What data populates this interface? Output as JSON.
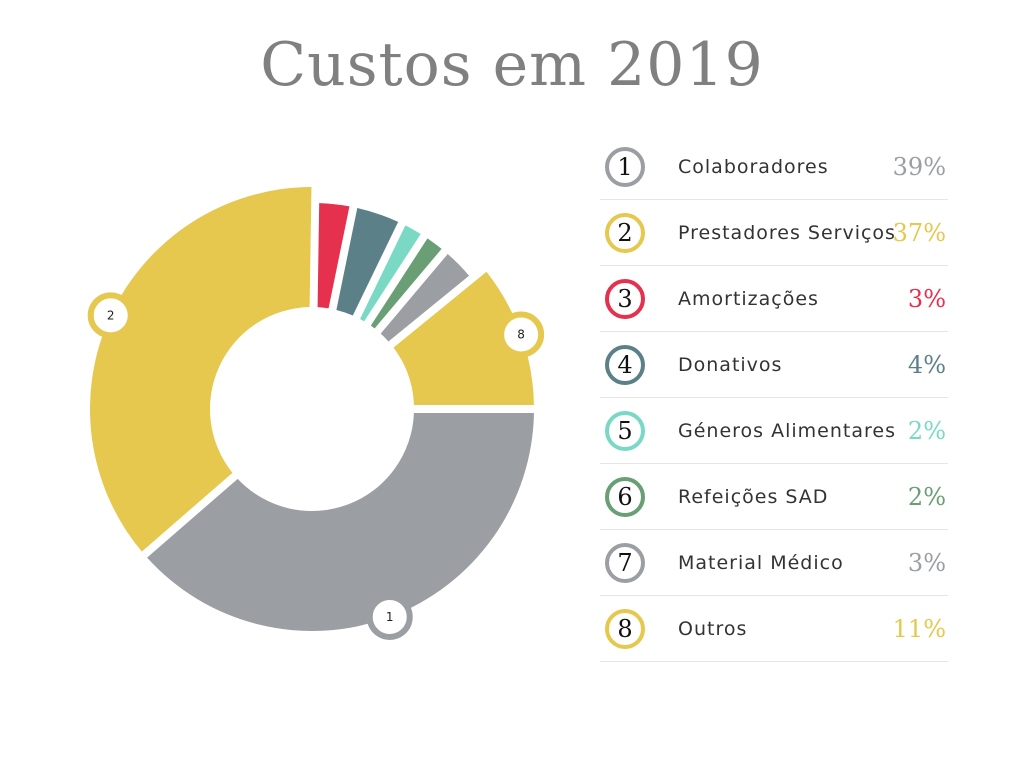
{
  "chart_data": {
    "type": "pie",
    "title": "Custos em 2019",
    "slices": [
      {
        "num": "1",
        "label": "Colaboradores",
        "value": 39,
        "value_label": "39%",
        "color": "#9b9fa3"
      },
      {
        "num": "2",
        "label": "Prestadores Serviços",
        "value": 37,
        "value_label": "37%",
        "color": "#e5c84d"
      },
      {
        "num": "3",
        "label": "Amortizações",
        "value": 3,
        "value_label": "3%",
        "color": "#e5304e"
      },
      {
        "num": "4",
        "label": "Donativos",
        "value": 4,
        "value_label": "4%",
        "color": "#5c8088"
      },
      {
        "num": "5",
        "label": "Géneros Alimentares",
        "value": 2,
        "value_label": "2%",
        "color": "#7ad9c4"
      },
      {
        "num": "6",
        "label": "Refeições SAD",
        "value": 2,
        "value_label": "2%",
        "color": "#6a9e74"
      },
      {
        "num": "7",
        "label": "Material Médico",
        "value": 3,
        "value_label": "3%",
        "color": "#9b9fa3"
      },
      {
        "num": "8",
        "label": "Outros",
        "value": 11,
        "value_label": "11%",
        "color": "#e5c84d"
      }
    ],
    "slice_markers": [
      "1",
      "2",
      "8"
    ]
  }
}
